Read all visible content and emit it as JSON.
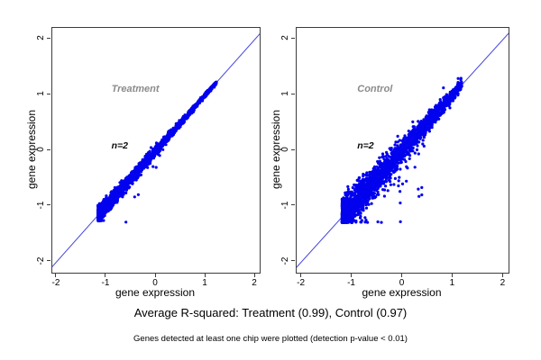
{
  "figure": {
    "caption": "Average R-squared: Treatment (0.99), Control (0.97)",
    "footnote": "Genes detected at least one chip were plotted (detection p-value < 0.01)"
  },
  "colors": {
    "point": "#0202ee",
    "identity_line": "#4444e0",
    "panel_label": "#8b8b8b",
    "annotation": "#0a0a0a",
    "axis": "#3c3c3c",
    "background": "#ffffff"
  },
  "chart_data": [
    {
      "type": "scatter",
      "panel": "treatment",
      "title": "Treatment",
      "annotation": "n=2",
      "xlabel": "gene expression",
      "ylabel": "gene expression",
      "xlim": [
        -2.09,
        2.09
      ],
      "ylim": [
        -2.2,
        2.2
      ],
      "xticks": [
        -2,
        -1,
        0,
        1,
        2
      ],
      "yticks": [
        -2,
        -1,
        0,
        1,
        2
      ],
      "identity_line": true,
      "r_squared": 0.99,
      "title_anchor": {
        "x": -0.88,
        "y": 1.06
      },
      "annotation_anchor": {
        "x": -0.88,
        "y": 0.06
      },
      "cloud": {
        "seed": 12,
        "n": 2200,
        "x_min": -1.17,
        "x_max": 1.22,
        "skew": 1.7,
        "sd_bottom": 0.07,
        "sd_top": 0.012,
        "outliers": 9,
        "outlier_x_min": -0.7,
        "outlier_x_max": 0.35,
        "outlier_drop": 0.28
      }
    },
    {
      "type": "scatter",
      "panel": "control",
      "title": "Control",
      "annotation": "n=2",
      "xlabel": "gene expression",
      "ylabel": "gene expression",
      "xlim": [
        -2.1,
        2.1
      ],
      "ylim": [
        -2.2,
        2.2
      ],
      "xticks": [
        -2,
        -1,
        0,
        1,
        2
      ],
      "yticks": [
        -2,
        -1,
        0,
        1,
        2
      ],
      "identity_line": true,
      "r_squared": 0.97,
      "title_anchor": {
        "x": -0.88,
        "y": 1.06
      },
      "annotation_anchor": {
        "x": -0.88,
        "y": 0.06
      },
      "cloud": {
        "seed": 99,
        "n": 2200,
        "x_min": -1.2,
        "x_max": 1.18,
        "skew": 1.7,
        "sd_bottom": 0.17,
        "sd_top": 0.045,
        "outliers": 55,
        "outlier_x_min": -0.9,
        "outlier_x_max": 0.6,
        "outlier_drop": 0.5
      }
    }
  ]
}
